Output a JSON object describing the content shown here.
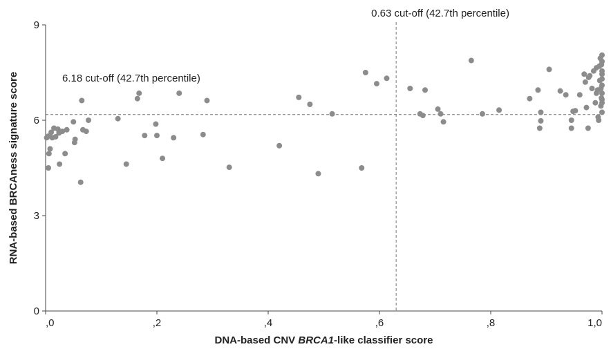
{
  "chart_data": {
    "type": "scatter",
    "title": "",
    "xlabel": "DNA-based CNV BRCA1-like classifier score",
    "xlabel_parts": [
      "DNA-based CNV ",
      "BRCA1",
      "-like classifier score"
    ],
    "ylabel": "RNA-based BRCAness signature score",
    "xlim": [
      0,
      1
    ],
    "ylim": [
      0,
      9
    ],
    "x_ticks": [
      ",0",
      ",2",
      ",4",
      ",6",
      ",8",
      "1,0"
    ],
    "y_ticks": [
      "0",
      "3",
      "6",
      "9"
    ],
    "grid": false,
    "marker_color": "#8c8c8c",
    "cutoffs": {
      "x": {
        "value": 0.63,
        "label": "0.63 cut-off (42.7th percentile)"
      },
      "y": {
        "value": 6.18,
        "label": "6.18 cut-off (42.7th percentile)"
      }
    },
    "points": [
      [
        0.002,
        5.45
      ],
      [
        0.005,
        5.5
      ],
      [
        0.008,
        5.1
      ],
      [
        0.006,
        4.95
      ],
      [
        0.01,
        5.62
      ],
      [
        0.012,
        5.45
      ],
      [
        0.015,
        5.75
      ],
      [
        0.018,
        5.48
      ],
      [
        0.022,
        5.72
      ],
      [
        0.024,
        5.6
      ],
      [
        0.005,
        4.5
      ],
      [
        0.025,
        4.62
      ],
      [
        0.03,
        5.65
      ],
      [
        0.035,
        4.95
      ],
      [
        0.038,
        5.7
      ],
      [
        0.05,
        5.95
      ],
      [
        0.052,
        5.3
      ],
      [
        0.053,
        5.4
      ],
      [
        0.063,
        4.05
      ],
      [
        0.065,
        6.62
      ],
      [
        0.067,
        5.7
      ],
      [
        0.073,
        5.65
      ],
      [
        0.077,
        6.0
      ],
      [
        0.13,
        6.05
      ],
      [
        0.145,
        4.62
      ],
      [
        0.165,
        6.68
      ],
      [
        0.168,
        6.85
      ],
      [
        0.178,
        5.52
      ],
      [
        0.198,
        5.88
      ],
      [
        0.2,
        5.52
      ],
      [
        0.21,
        4.8
      ],
      [
        0.23,
        5.45
      ],
      [
        0.24,
        6.85
      ],
      [
        0.283,
        5.55
      ],
      [
        0.29,
        6.62
      ],
      [
        0.33,
        4.52
      ],
      [
        0.42,
        5.2
      ],
      [
        0.455,
        6.72
      ],
      [
        0.475,
        6.5
      ],
      [
        0.49,
        4.32
      ],
      [
        0.515,
        6.2
      ],
      [
        0.568,
        4.5
      ],
      [
        0.575,
        7.5
      ],
      [
        0.595,
        7.15
      ],
      [
        0.613,
        7.32
      ],
      [
        0.655,
        7.0
      ],
      [
        0.673,
        6.2
      ],
      [
        0.678,
        6.15
      ],
      [
        0.682,
        6.95
      ],
      [
        0.705,
        6.35
      ],
      [
        0.71,
        6.2
      ],
      [
        0.715,
        5.95
      ],
      [
        0.765,
        7.88
      ],
      [
        0.785,
        6.2
      ],
      [
        0.815,
        6.32
      ],
      [
        0.87,
        6.68
      ],
      [
        0.885,
        6.95
      ],
      [
        0.888,
        5.75
      ],
      [
        0.89,
        5.98
      ],
      [
        0.89,
        6.25
      ],
      [
        0.905,
        7.6
      ],
      [
        0.925,
        6.92
      ],
      [
        0.935,
        6.8
      ],
      [
        0.945,
        6.0
      ],
      [
        0.945,
        5.75
      ],
      [
        0.948,
        6.28
      ],
      [
        0.952,
        6.3
      ],
      [
        0.96,
        6.8
      ],
      [
        0.968,
        7.45
      ],
      [
        0.97,
        7.2
      ],
      [
        0.972,
        6.4
      ],
      [
        0.975,
        5.75
      ],
      [
        0.976,
        7.35
      ],
      [
        0.978,
        7.4
      ],
      [
        0.982,
        7.0
      ],
      [
        0.985,
        7.55
      ],
      [
        0.988,
        6.55
      ],
      [
        0.99,
        7.65
      ],
      [
        0.99,
        6.85
      ],
      [
        0.992,
        6.95
      ],
      [
        0.993,
        6.1
      ],
      [
        0.994,
        6.0
      ],
      [
        0.995,
        7.7
      ],
      [
        0.996,
        7.25
      ],
      [
        0.997,
        7.95
      ],
      [
        0.998,
        6.45
      ],
      [
        0.998,
        7.0
      ],
      [
        0.999,
        6.7
      ],
      [
        0.999,
        7.75
      ],
      [
        1.0,
        7.3
      ],
      [
        1.0,
        6.65
      ],
      [
        1.0,
        7.1
      ],
      [
        1.0,
        8.05
      ],
      [
        1.0,
        6.85
      ],
      [
        1.0,
        7.45
      ],
      [
        1.0,
        6.55
      ],
      [
        1.0,
        7.85
      ],
      [
        1.0,
        6.25
      ],
      [
        1.0,
        7.55
      ]
    ]
  }
}
